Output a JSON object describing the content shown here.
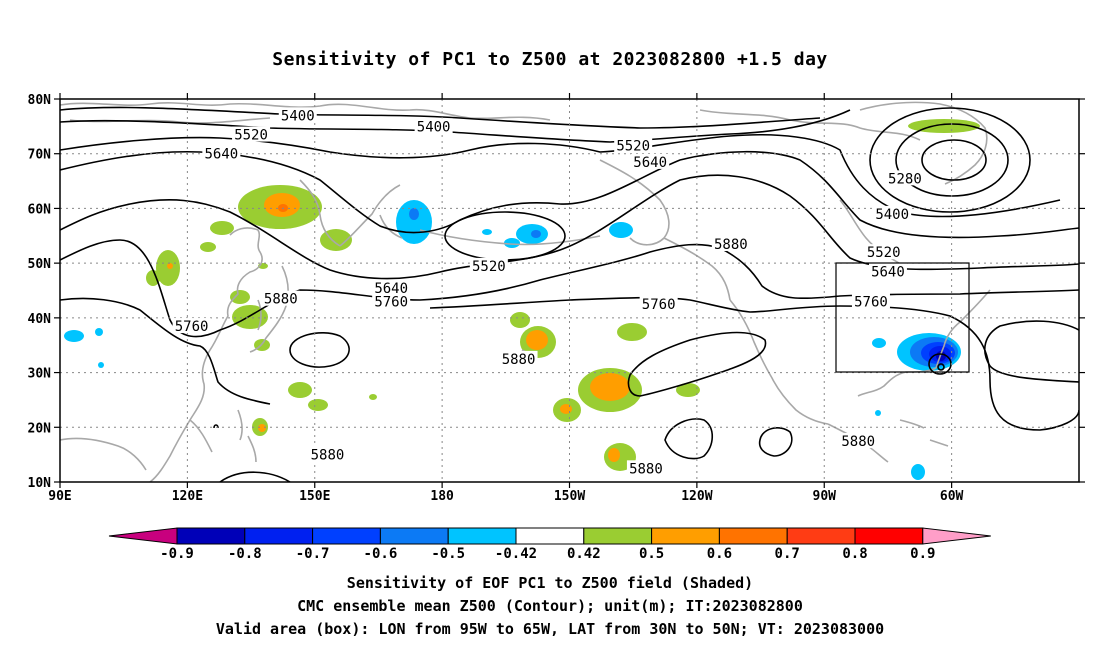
{
  "title": "Sensitivity of PC1 to Z500 at 2023082800 +1.5 day",
  "lat_labels": [
    "80N",
    "70N",
    "60N",
    "50N",
    "40N",
    "30N",
    "20N",
    "10N"
  ],
  "lon_labels": [
    "90E",
    "120E",
    "150E",
    "180",
    "150W",
    "120W",
    "90W",
    "60W"
  ],
  "contour_labels": [
    {
      "text": "5400",
      "lon": 146,
      "lat": 77
    },
    {
      "text": "5400",
      "lon": 178,
      "lat": 75
    },
    {
      "text": "5520",
      "lon": 135,
      "lat": 73.5
    },
    {
      "text": "5520",
      "lon": 225,
      "lat": 71.5
    },
    {
      "text": "5640",
      "lon": 128,
      "lat": 70
    },
    {
      "text": "5640",
      "lon": 229,
      "lat": 68.5
    },
    {
      "text": "5280",
      "lon": 289,
      "lat": 65.5
    },
    {
      "text": "5400",
      "lon": 286,
      "lat": 59
    },
    {
      "text": "5520",
      "lon": 284,
      "lat": 52
    },
    {
      "text": "5880",
      "lon": 248,
      "lat": 53.5
    },
    {
      "text": "5520",
      "lon": 191,
      "lat": 49.5
    },
    {
      "text": "5640",
      "lon": 285,
      "lat": 48.5
    },
    {
      "text": "5640",
      "lon": 168,
      "lat": 45.5
    },
    {
      "text": "5880",
      "lon": 142,
      "lat": 43.5
    },
    {
      "text": "5760",
      "lon": 168,
      "lat": 43
    },
    {
      "text": "5760",
      "lon": 281,
      "lat": 43
    },
    {
      "text": "5760",
      "lon": 231,
      "lat": 42.5
    },
    {
      "text": "5760",
      "lon": 121,
      "lat": 38.5
    },
    {
      "text": "5880",
      "lon": 198,
      "lat": 32.5
    },
    {
      "text": "5880",
      "lon": 153,
      "lat": 15
    },
    {
      "text": "5880",
      "lon": 278,
      "lat": 17.5
    },
    {
      "text": "5880",
      "lon": 228,
      "lat": 12.5
    }
  ],
  "colorbar": {
    "labels": [
      "-0.9",
      "-0.8",
      "-0.7",
      "-0.6",
      "-0.5",
      "-0.42",
      "0.42",
      "0.5",
      "0.6",
      "0.7",
      "0.8",
      "0.9"
    ],
    "colors": [
      "#0000b8",
      "#0020f0",
      "#0040ff",
      "#0c7af5",
      "#00c4ff",
      "#ffffff",
      "#9acd32",
      "#ff9e00",
      "#ff7300",
      "#ff3c14",
      "#ff0000"
    ],
    "under_color": "#c8007e",
    "over_color": "#ff9ec8"
  },
  "footer": [
    "Sensitivity of EOF PC1 to Z500 field (Shaded)",
    "CMC ensemble mean Z500 (Contour); unit(m); IT:2023082800",
    "Valid area (box): LON from 95W to 65W, LAT from 30N to 50N; VT: 2023083000"
  ],
  "colors": {
    "coastline": "#a8a8a8",
    "contour": "#000000",
    "grid": "#888888"
  }
}
